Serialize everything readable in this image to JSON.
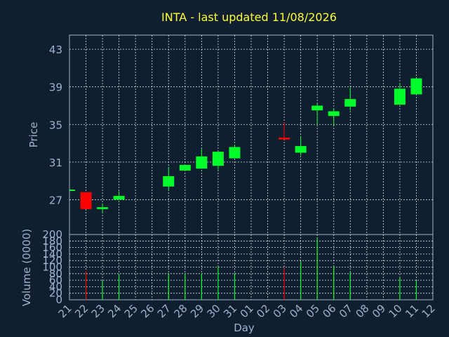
{
  "colors": {
    "background": "#0f1f30",
    "frame": "#9db3cc",
    "grid": "#ffffff",
    "title": "#ffff33",
    "text": "#9db3cc",
    "up": "#00ff2a",
    "down": "#ff0000"
  },
  "chart_data": [
    {
      "type": "candlestick",
      "title": "INTA - last updated 11/08/2026",
      "ylabel": "Price",
      "ylim": [
        23.3,
        44.5
      ],
      "yticks": [
        27,
        31,
        35,
        39,
        43
      ],
      "grid": true,
      "x": [
        "21",
        "22",
        "23",
        "24",
        "25",
        "26",
        "27",
        "28",
        "29",
        "30",
        "31",
        "01",
        "02",
        "03",
        "04",
        "05",
        "06",
        "07",
        "08",
        "09",
        "10",
        "11",
        "12"
      ],
      "candles": [
        {
          "day": "21",
          "open": 28.0,
          "close": 28.0,
          "high": 28.0,
          "low": 28.0,
          "dir": "flat"
        },
        {
          "day": "22",
          "open": 27.8,
          "close": 26.0,
          "high": 27.8,
          "low": 26.0,
          "dir": "down"
        },
        {
          "day": "23",
          "open": 26.0,
          "close": 26.2,
          "high": 26.6,
          "low": 25.6,
          "dir": "up"
        },
        {
          "day": "24",
          "open": 27.0,
          "close": 27.4,
          "high": 27.9,
          "low": 27.0,
          "dir": "up"
        },
        {
          "day": "27",
          "open": 28.4,
          "close": 29.5,
          "high": 30.5,
          "low": 28.0,
          "dir": "up"
        },
        {
          "day": "28",
          "open": 30.1,
          "close": 30.7,
          "high": 30.7,
          "low": 30.1,
          "dir": "up"
        },
        {
          "day": "29",
          "open": 30.3,
          "close": 31.6,
          "high": 32.4,
          "low": 30.3,
          "dir": "up"
        },
        {
          "day": "30",
          "open": 30.6,
          "close": 32.1,
          "high": 32.1,
          "low": 30.2,
          "dir": "up"
        },
        {
          "day": "31",
          "open": 31.4,
          "close": 32.6,
          "high": 32.8,
          "low": 31.4,
          "dir": "up"
        },
        {
          "day": "03",
          "open": 33.6,
          "close": 33.4,
          "high": 35.2,
          "low": 33.4,
          "dir": "down"
        },
        {
          "day": "04",
          "open": 32.0,
          "close": 32.7,
          "high": 33.7,
          "low": 31.7,
          "dir": "up"
        },
        {
          "day": "05",
          "open": 36.5,
          "close": 37.0,
          "high": 37.2,
          "low": 35.0,
          "dir": "up"
        },
        {
          "day": "06",
          "open": 35.9,
          "close": 36.4,
          "high": 36.7,
          "low": 34.9,
          "dir": "up"
        },
        {
          "day": "07",
          "open": 36.9,
          "close": 37.7,
          "high": 38.9,
          "low": 36.5,
          "dir": "up"
        },
        {
          "day": "10",
          "open": 37.1,
          "close": 38.8,
          "high": 39.4,
          "low": 37.1,
          "dir": "up"
        },
        {
          "day": "11",
          "open": 38.2,
          "close": 39.9,
          "high": 39.9,
          "low": 38.2,
          "dir": "up"
        }
      ]
    },
    {
      "type": "bar",
      "ylabel": "Volume (0000)",
      "xlabel": "Day",
      "ylim": [
        0,
        200
      ],
      "yticks": [
        0,
        20,
        40,
        60,
        80,
        100,
        120,
        140,
        160,
        180,
        200
      ],
      "grid": true,
      "categories": [
        "21",
        "22",
        "23",
        "24",
        "25",
        "26",
        "27",
        "28",
        "29",
        "30",
        "31",
        "01",
        "02",
        "03",
        "04",
        "05",
        "06",
        "07",
        "08",
        "09",
        "10",
        "11",
        "12"
      ],
      "bars": [
        {
          "day": "22",
          "value": 88,
          "dir": "down"
        },
        {
          "day": "23",
          "value": 58,
          "dir": "up"
        },
        {
          "day": "24",
          "value": 78,
          "dir": "up"
        },
        {
          "day": "27",
          "value": 78,
          "dir": "up"
        },
        {
          "day": "28",
          "value": 80,
          "dir": "up"
        },
        {
          "day": "29",
          "value": 80,
          "dir": "up"
        },
        {
          "day": "30",
          "value": 100,
          "dir": "up"
        },
        {
          "day": "31",
          "value": 82,
          "dir": "up"
        },
        {
          "day": "03",
          "value": 95,
          "dir": "down"
        },
        {
          "day": "04",
          "value": 118,
          "dir": "up"
        },
        {
          "day": "05",
          "value": 188,
          "dir": "up"
        },
        {
          "day": "06",
          "value": 102,
          "dir": "up"
        },
        {
          "day": "07",
          "value": 85,
          "dir": "up"
        },
        {
          "day": "10",
          "value": 68,
          "dir": "up"
        },
        {
          "day": "11",
          "value": 58,
          "dir": "up"
        }
      ]
    }
  ]
}
